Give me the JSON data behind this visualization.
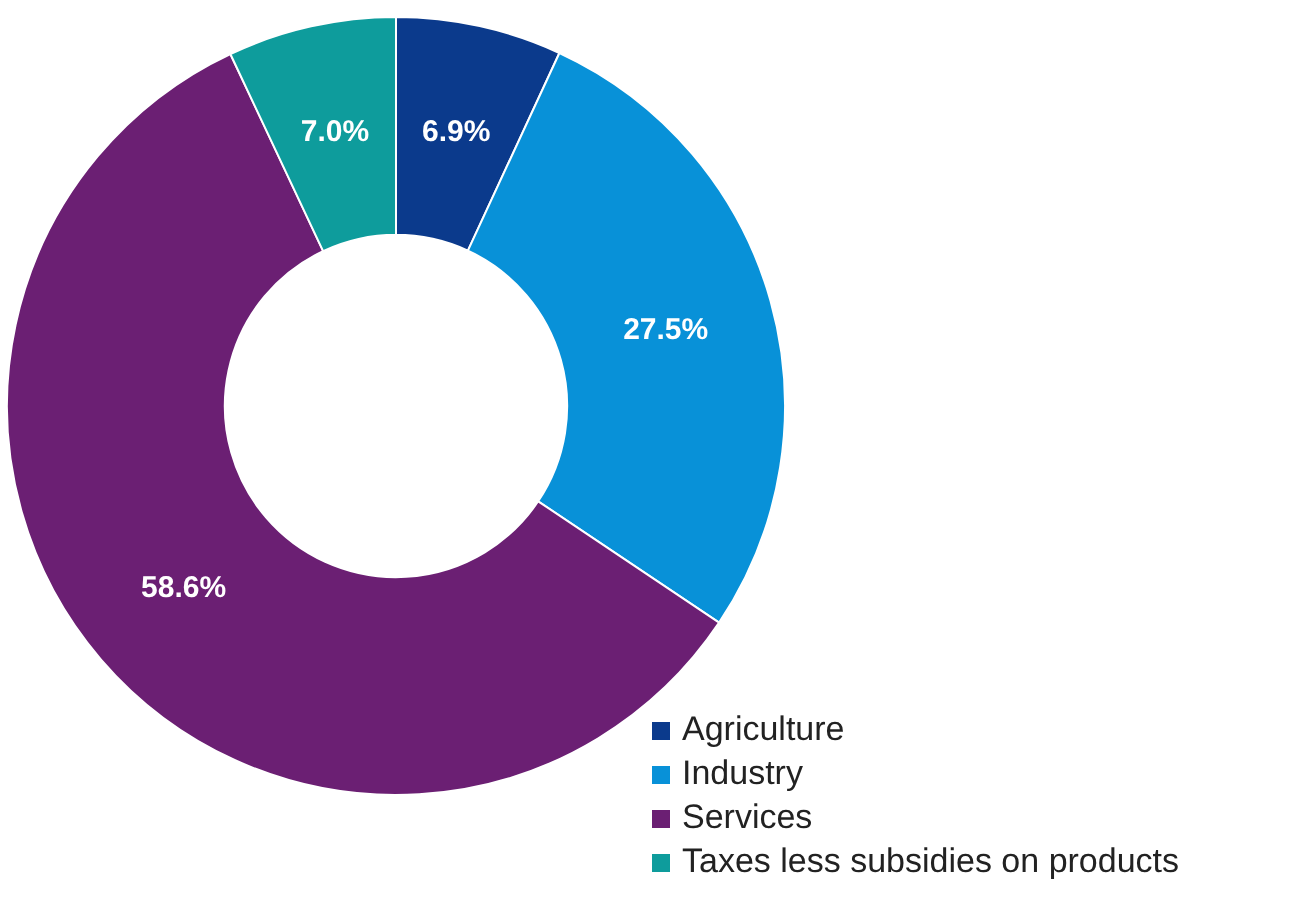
{
  "chart_data": {
    "type": "donut",
    "categories": [
      "Agriculture",
      "Industry",
      "Services",
      "Taxes less subsidies on products"
    ],
    "values": [
      6.9,
      27.5,
      58.6,
      7.0
    ],
    "colors": [
      "#0b3a8c",
      "#0891d8",
      "#6b1f73",
      "#0e9c9c"
    ],
    "value_labels": [
      "6.9%",
      "27.5%",
      "58.6%",
      "7.0%"
    ],
    "legend": "bottom right"
  }
}
